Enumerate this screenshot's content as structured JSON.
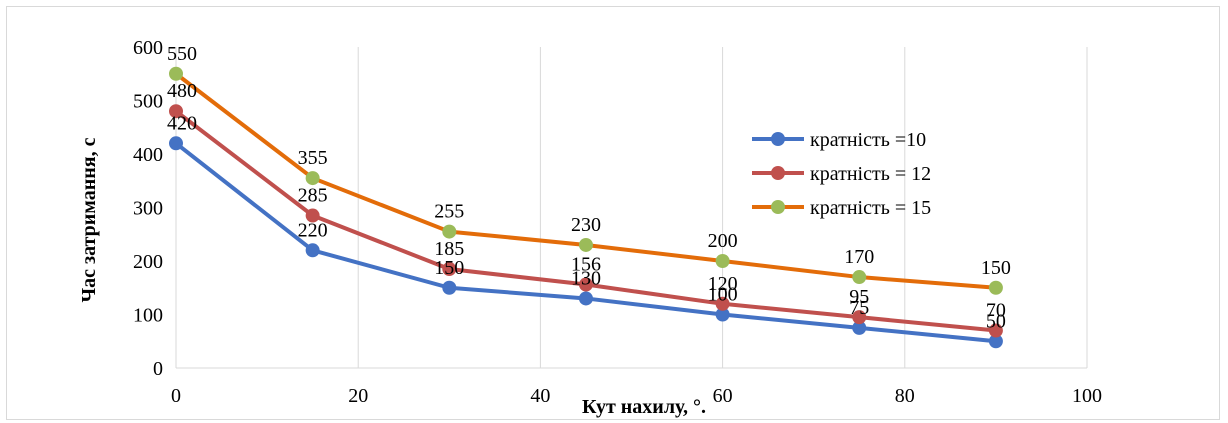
{
  "chart_data": {
    "type": "line",
    "xlabel": "Кут нахилу, °.",
    "ylabel": "Час затримання, с",
    "xlim": [
      0,
      100
    ],
    "ylim": [
      0,
      600
    ],
    "x_ticks": [
      "0",
      "20",
      "40",
      "60",
      "80",
      "100"
    ],
    "y_ticks": [
      "0",
      "100",
      "200",
      "300",
      "400",
      "500",
      "600"
    ],
    "grid": "vertical",
    "legend_position": "top-right",
    "x": [
      0,
      15,
      30,
      45,
      60,
      75,
      90
    ],
    "series": [
      {
        "name": "кратність =10",
        "values": [
          420,
          220,
          150,
          130,
          100,
          75,
          50
        ],
        "line_color": "#4472c4",
        "marker_color": "#4472c4"
      },
      {
        "name": "кратність = 12",
        "values": [
          480,
          285,
          185,
          156,
          120,
          95,
          70
        ],
        "line_color": "#c0504d",
        "marker_color": "#c0504d"
      },
      {
        "name": "кратність = 15",
        "values": [
          550,
          355,
          255,
          230,
          200,
          170,
          150
        ],
        "line_color": "#e36c09",
        "marker_color": "#9bbb59"
      }
    ]
  }
}
